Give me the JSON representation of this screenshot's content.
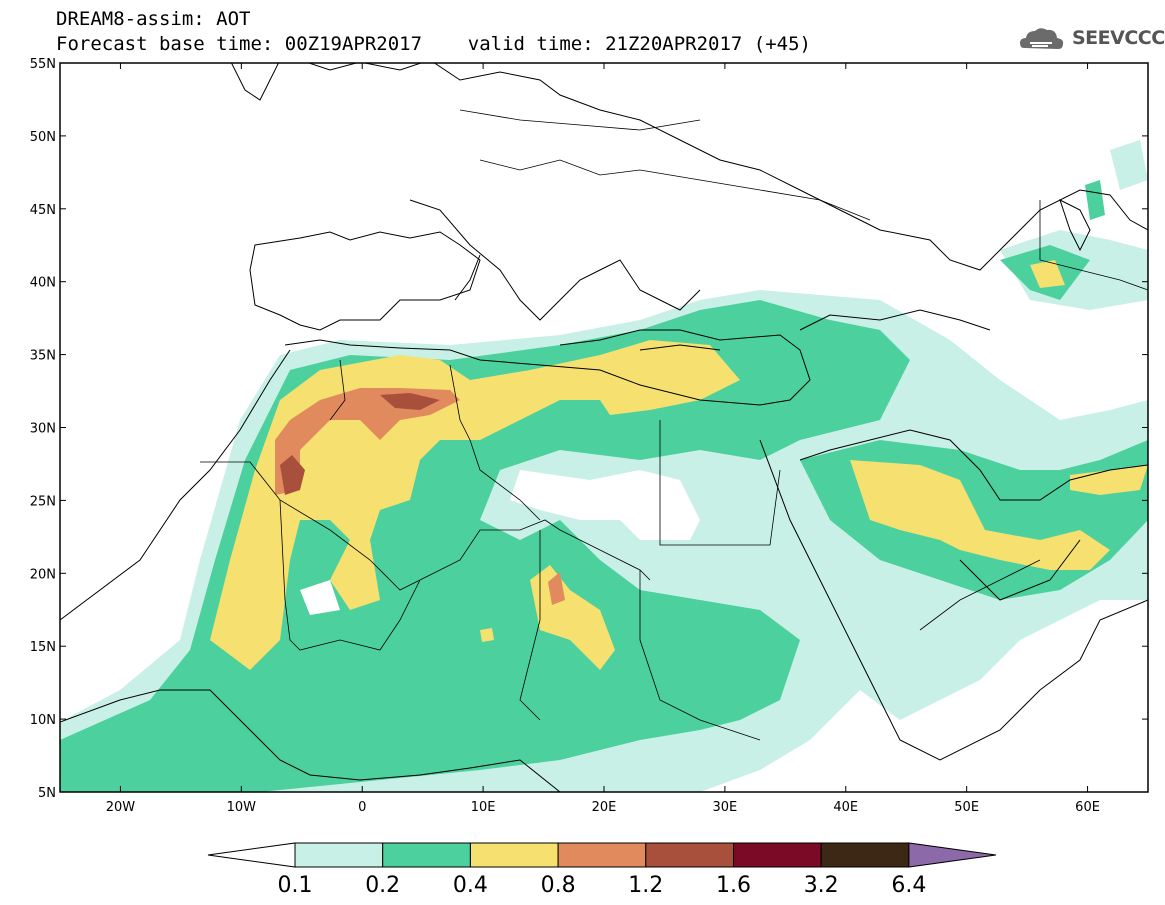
{
  "header": {
    "line1": "DREAM8-assim: AOT",
    "line2": "Forecast base time: 00Z19APR2017    valid time: 21Z20APR2017 (+45)"
  },
  "logo": {
    "text": "SEEVCCC",
    "icon": "cloud-icon"
  },
  "map": {
    "lon_range": [
      -25,
      65
    ],
    "lat_range": [
      5,
      55
    ],
    "lat_ticks": [
      "55N",
      "50N",
      "45N",
      "40N",
      "35N",
      "30N",
      "25N",
      "20N",
      "15N",
      "10N",
      "5N"
    ],
    "lon_ticks": [
      "20W",
      "10W",
      "0",
      "10E",
      "20E",
      "30E",
      "40E",
      "50E",
      "60E"
    ],
    "background": "#ffffff"
  },
  "colorbar": {
    "labels": [
      "0.1",
      "0.2",
      "0.4",
      "0.8",
      "1.2",
      "1.6",
      "3.2",
      "6.4"
    ],
    "colors": [
      "#ffffff",
      "#c8f0e6",
      "#4cd09e",
      "#f5e070",
      "#e08a5e",
      "#a8503c",
      "#7a0a25",
      "#3c2814",
      "#8c6aaa"
    ]
  }
}
